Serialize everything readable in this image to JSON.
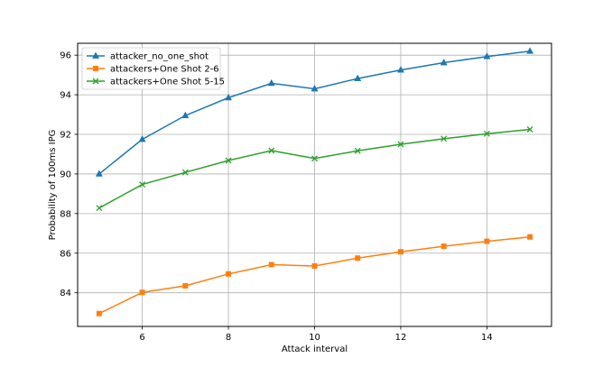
{
  "chart_data": {
    "type": "line",
    "title": "",
    "xlabel": "Attack interval",
    "ylabel": "Probability of 100ms IPG",
    "x": [
      5,
      6,
      7,
      8,
      9,
      10,
      11,
      12,
      13,
      14,
      15
    ],
    "xlim": [
      4.5,
      15.5
    ],
    "ylim": [
      82.3,
      96.6
    ],
    "xticks": [
      6,
      8,
      10,
      12,
      14
    ],
    "yticks": [
      84,
      86,
      88,
      90,
      92,
      94,
      96
    ],
    "grid": true,
    "legend_position": "upper-left",
    "series": [
      {
        "name": "attacker_no_one_shot",
        "color": "#1f77b4",
        "marker": "triangle",
        "values": [
          90.0,
          91.75,
          92.95,
          93.85,
          94.58,
          94.3,
          94.82,
          95.25,
          95.62,
          95.93,
          96.2
        ]
      },
      {
        "name": "attackers+One Shot 2-6",
        "color": "#ff7f0e",
        "marker": "square",
        "values": [
          82.95,
          84.02,
          84.35,
          84.95,
          85.42,
          85.35,
          85.75,
          86.07,
          86.35,
          86.6,
          86.82
        ]
      },
      {
        "name": "attackers+One Shot 5-15",
        "color": "#2ca02c",
        "marker": "x",
        "values": [
          88.28,
          89.47,
          90.08,
          90.68,
          91.18,
          90.78,
          91.17,
          91.5,
          91.78,
          92.03,
          92.25
        ]
      }
    ]
  }
}
